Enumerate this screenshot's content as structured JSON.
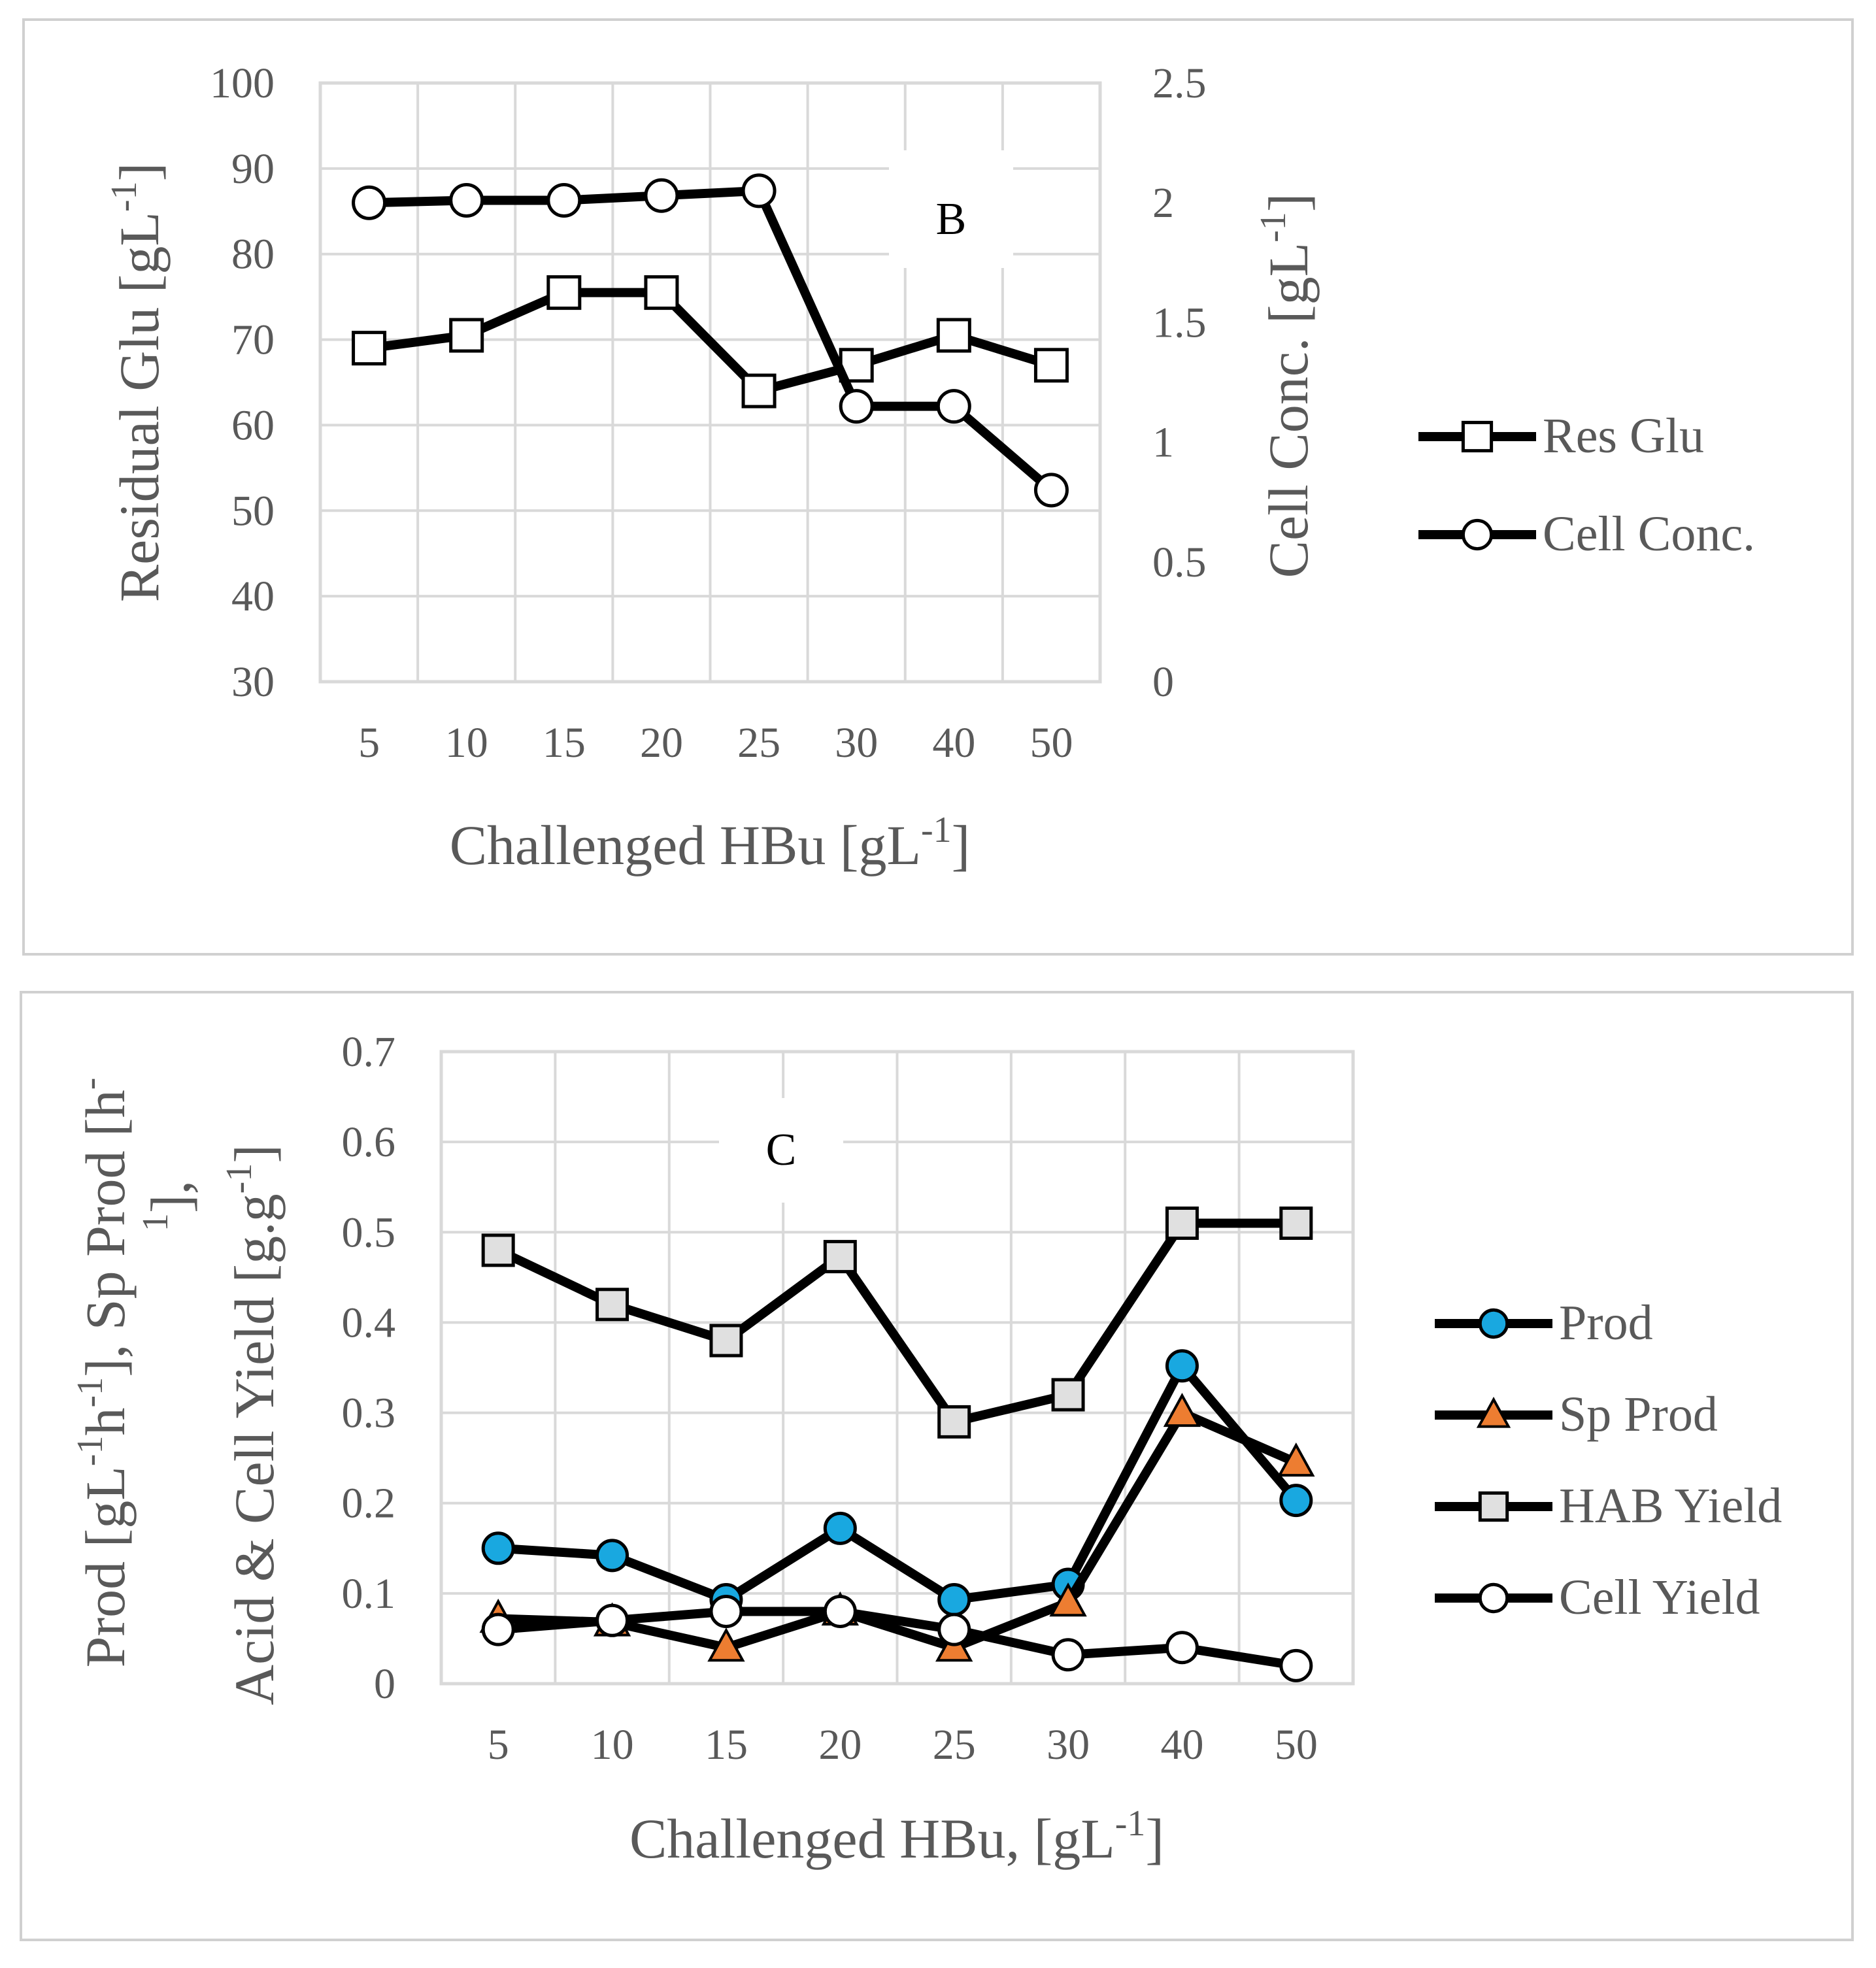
{
  "panels": [
    {
      "type": "line",
      "annotation": "B",
      "xlabel": "Challenged HBu [gL",
      "xlabel_sup": "-1",
      "xlabel_end": "]",
      "ylabel": "Residual Glu [gL",
      "ylabel_sup": "-1",
      "ylabel_end": "]",
      "y2label": "Cell Conc. [gL",
      "y2label_sup": "-1",
      "y2label_end": "]",
      "categories": [
        "5",
        "10",
        "15",
        "20",
        "25",
        "30",
        "40",
        "50"
      ],
      "ylim": [
        30,
        100
      ],
      "yticks": [
        "30",
        "40",
        "50",
        "60",
        "70",
        "80",
        "90",
        "100"
      ],
      "y2lim": [
        0,
        2.5
      ],
      "y2ticks": [
        "0",
        "0.5",
        "1",
        "1.5",
        "2",
        "2.5"
      ],
      "series": [
        {
          "name": "Res Glu",
          "axis": "left",
          "marker": "square",
          "fill": "#ffffff",
          "values": [
            69,
            70.5,
            75.5,
            75.5,
            64,
            67,
            70.5,
            67
          ]
        },
        {
          "name": "Cell Conc.",
          "axis": "right",
          "marker": "circle",
          "fill": "#ffffff",
          "values": [
            2.0,
            2.01,
            2.01,
            2.03,
            2.05,
            1.15,
            1.15,
            0.8
          ]
        }
      ]
    },
    {
      "type": "line",
      "annotation": "C",
      "xlabel": "Challenged HBu, [gL",
      "xlabel_sup": "-1",
      "xlabel_end": "]",
      "ylabel_line1": "Prod [gL",
      "ylabel_line1_sup1": "-1",
      "ylabel_line1_mid": "h",
      "ylabel_line1_sup2": "-1",
      "ylabel_line1_end": "], Sp Prod [h",
      "ylabel_line1_sup3": "-",
      "ylabel_line2_sup": "1",
      "ylabel_line2": "],",
      "ylabel_line3": "Acid & Cell Yield [g.g",
      "ylabel_line3_sup": "-1",
      "ylabel_line3_end": "]",
      "categories": [
        "5",
        "10",
        "15",
        "20",
        "25",
        "30",
        "40",
        "50"
      ],
      "ylim": [
        0,
        0.7
      ],
      "yticks": [
        "0",
        "0.1",
        "0.2",
        "0.3",
        "0.4",
        "0.5",
        "0.6",
        "0.7"
      ],
      "series": [
        {
          "name": "Prod",
          "marker": "circle",
          "fill": "#19a8e0",
          "values": [
            0.15,
            0.142,
            0.093,
            0.172,
            0.093,
            0.11,
            0.352,
            0.203
          ]
        },
        {
          "name": "Sp Prod",
          "marker": "triangle",
          "fill": "#ed7d31",
          "values": [
            0.072,
            0.068,
            0.04,
            0.08,
            0.04,
            0.09,
            0.3,
            0.245
          ]
        },
        {
          "name": "HAB Yield",
          "marker": "square",
          "fill": "#e0e0e0",
          "values": [
            0.48,
            0.42,
            0.38,
            0.473,
            0.29,
            0.32,
            0.51,
            0.51
          ]
        },
        {
          "name": "Cell Yield",
          "marker": "circle",
          "fill": "#ffffff",
          "values": [
            0.06,
            0.07,
            0.08,
            0.08,
            0.06,
            0.032,
            0.04,
            0.02
          ]
        }
      ]
    }
  ]
}
